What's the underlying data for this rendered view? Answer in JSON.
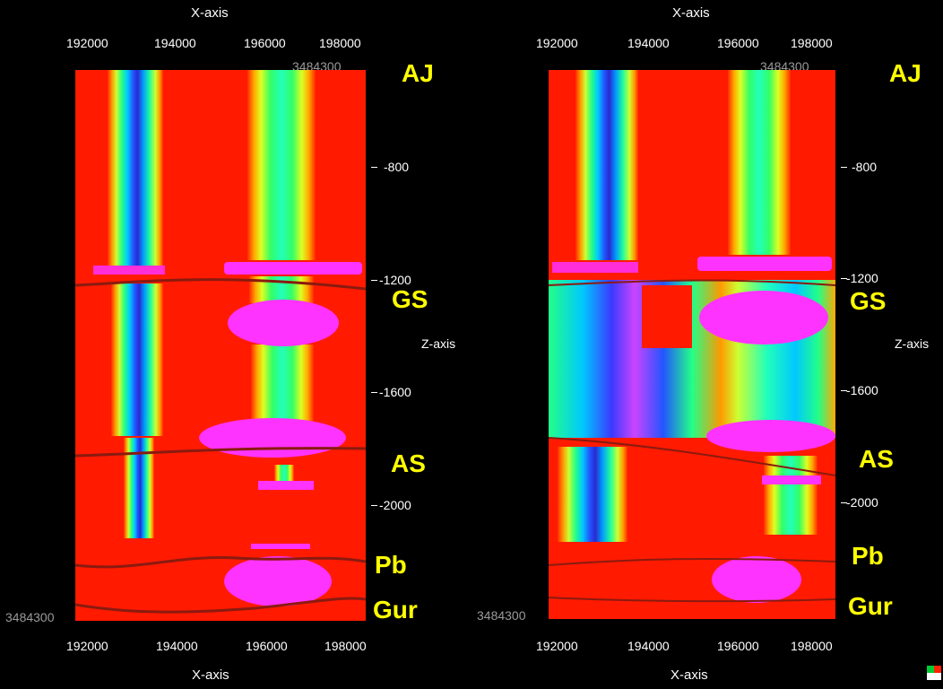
{
  "left": {
    "x_axis_top": "X-axis",
    "x_axis_bottom": "X-axis",
    "x_ticks_top": [
      "192000",
      "194000",
      "196000",
      "198000"
    ],
    "x_ticks_bottom": [
      "192000",
      "194000",
      "196000",
      "198000"
    ],
    "y_corner_top": "3484300",
    "y_corner_bottom": "3484300",
    "z_axis": "Z-axis",
    "z_ticks": [
      "-800",
      "-1200",
      "-1600",
      "-2000"
    ],
    "formations": [
      "AJ",
      "GS",
      "AS",
      "Pb",
      "Gur"
    ]
  },
  "right": {
    "x_axis_top": "X-axis",
    "x_axis_bottom": "X-axis",
    "x_ticks_top": [
      "192000",
      "194000",
      "196000",
      "198000"
    ],
    "x_ticks_bottom": [
      "192000",
      "194000",
      "196000",
      "198000"
    ],
    "y_corner_top": "3484300",
    "y_corner_bottom": "3484300",
    "z_axis": "Z-axis",
    "z_ticks": [
      "-800",
      "-1200",
      "-1600",
      "-2000"
    ],
    "formations": [
      "AJ",
      "GS",
      "AS",
      "Pb",
      "Gur"
    ]
  },
  "colors": {
    "background": "#000000",
    "formation_label": "#ffff00",
    "fill_red": "#ff1a00",
    "magenta": "#ff33ff",
    "horizon_line": "#8a1a10"
  },
  "icons": [
    "corner-color-icon"
  ]
}
